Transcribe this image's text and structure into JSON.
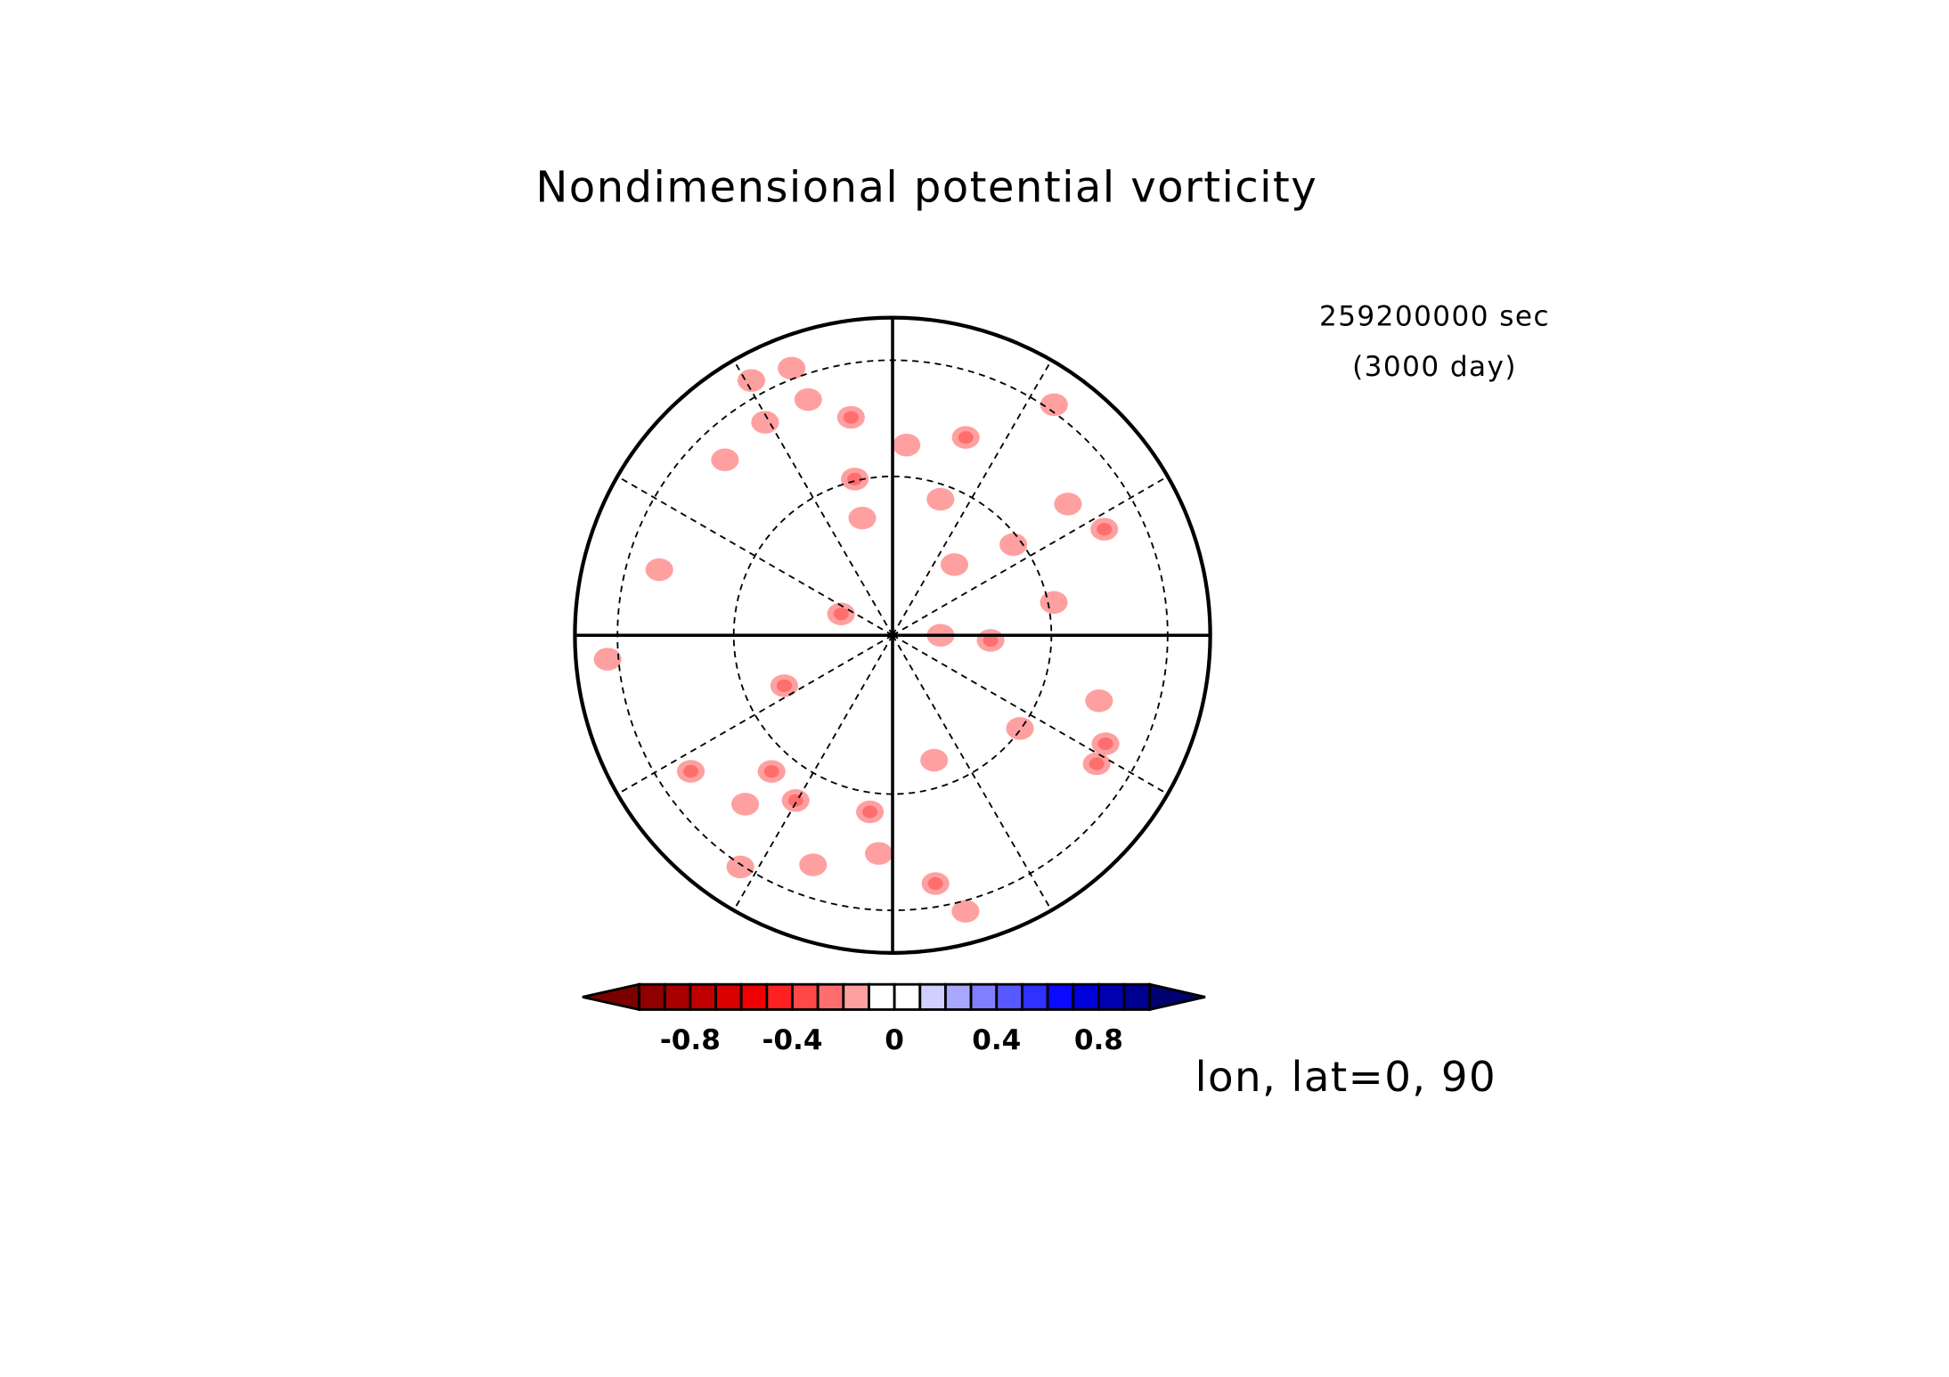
{
  "chart_data": {
    "type": "polar_contour",
    "title": "Nondimensional potential vorticity",
    "time_label": "259200000 sec",
    "day_label": "(3000 day)",
    "projection_label": "lon, lat=0, 90",
    "lat_circles": [
      30,
      60
    ],
    "lon_lines": [
      0,
      30,
      60,
      90,
      120,
      150,
      180,
      210,
      240,
      270,
      300,
      330
    ],
    "colorbar": {
      "levels": [
        -1,
        -0.9,
        -0.8,
        -0.7,
        -0.6,
        -0.5,
        -0.4,
        -0.3,
        -0.2,
        -0.1,
        0,
        0.1,
        0.2,
        0.3,
        0.4,
        0.5,
        0.6,
        0.7,
        0.8,
        0.9,
        1
      ],
      "ticks": [
        -0.8,
        -0.4,
        0,
        0.4,
        0.8
      ],
      "colors": [
        "#7a0000",
        "#900000",
        "#a80000",
        "#c00000",
        "#d80000",
        "#f00000",
        "#ff2020",
        "#ff4848",
        "#ff6e6e",
        "#ffa0a0",
        "#ffffff",
        "#ffffff",
        "#d0d0ff",
        "#a8a8ff",
        "#8080ff",
        "#5858ff",
        "#3030ff",
        "#0a0aff",
        "#0000d8",
        "#0000b0",
        "#000090",
        "#000070"
      ]
    },
    "blobs": [
      {
        "lon": 247.5,
        "lat": 79.9,
        "value": -0.25
      },
      {
        "lon": 295,
        "lat": 67.9,
        "value": -0.25
      },
      {
        "lon": 90,
        "lat": 81.3,
        "value": -0.15
      },
      {
        "lon": 87,
        "lat": 72,
        "value": -0.25
      },
      {
        "lon": 101.5,
        "lat": 58.8,
        "value": -0.15
      },
      {
        "lon": 126.9,
        "lat": 61.6,
        "value": -0.15
      },
      {
        "lon": 138.8,
        "lat": 72.8,
        "value": -0.15
      },
      {
        "lon": 160.6,
        "lat": 63,
        "value": -0.15
      },
      {
        "lon": 175.8,
        "lat": 53.1,
        "value": -0.15
      },
      {
        "lon": 159.7,
        "lat": 48.4,
        "value": -0.25
      },
      {
        "lon": 193.6,
        "lat": 59.6,
        "value": -0.25
      },
      {
        "lon": 190.8,
        "lat": 45.7,
        "value": -0.25
      },
      {
        "lon": 199.7,
        "lat": 38,
        "value": -0.15
      },
      {
        "lon": 210.9,
        "lat": 38.6,
        "value": -0.15
      },
      {
        "lon": 223.7,
        "lat": 40.2,
        "value": -0.15
      },
      {
        "lon": 254.3,
        "lat": 40.3,
        "value": -0.15
      },
      {
        "lon": 126.8,
        "lat": 46.4,
        "value": -0.15
      },
      {
        "lon": 116.6,
        "lat": 41.8,
        "value": -0.25
      },
      {
        "lon": 72.4,
        "lat": 47,
        "value": -0.15
      },
      {
        "lon": 63,
        "lat": 41.2,
        "value": -0.25
      },
      {
        "lon": 53.8,
        "lat": 60.2,
        "value": -0.15
      },
      {
        "lon": 18.4,
        "lat": 65.5,
        "value": -0.15
      },
      {
        "lon": 352.7,
        "lat": 55.9,
        "value": -0.25
      },
      {
        "lon": 9.8,
        "lat": 37.5,
        "value": -0.25
      },
      {
        "lon": 329.6,
        "lat": 52.9,
        "value": -0.25
      },
      {
        "lon": 318.4,
        "lat": 55,
        "value": -0.25
      },
      {
        "lon": 318.9,
        "lat": 45.1,
        "value": -0.15
      },
      {
        "lon": 304,
        "lat": 40,
        "value": -0.25
      },
      {
        "lon": 356.4,
        "lat": 46.5,
        "value": -0.15
      },
      {
        "lon": 340.9,
        "lat": 40.1,
        "value": -0.15
      },
      {
        "lon": 14.8,
        "lat": 26,
        "value": -0.15
      },
      {
        "lon": 145,
        "lat": 27.6,
        "value": -0.15
      },
      {
        "lon": 57.8,
        "lat": 40.6,
        "value": -0.25
      },
      {
        "lon": 200.7,
        "lat": 26,
        "value": -0.15
      },
      {
        "lon": 194.5,
        "lat": 67.6,
        "value": -0.15
      },
      {
        "lon": 274.8,
        "lat": 25.8,
        "value": -0.15
      },
      {
        "lon": 326.7,
        "lat": 29.2,
        "value": -0.15
      },
      {
        "lon": 209,
        "lat": 23.5,
        "value": -0.15
      }
    ]
  }
}
